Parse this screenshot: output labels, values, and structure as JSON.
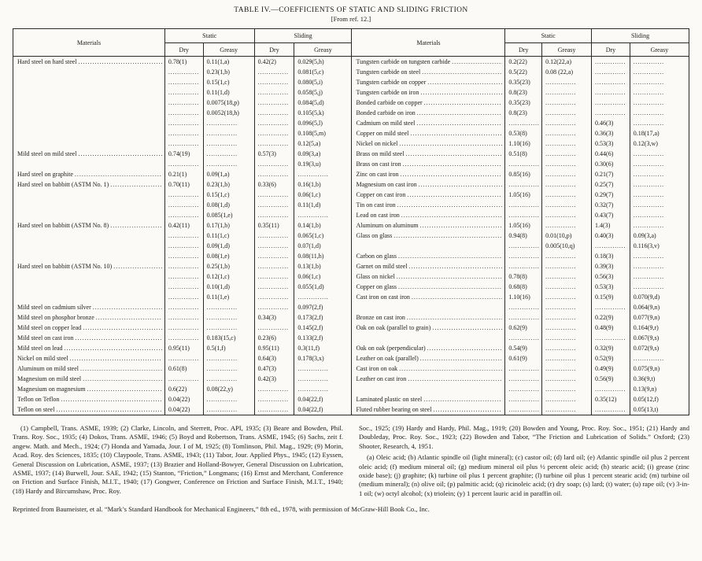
{
  "page": {
    "title": "TABLE IV.—COEFFICIENTS OF STATIC AND SLIDING FRICTION",
    "subtitle": "[From ref. 12.]",
    "reprint_note": "Reprinted from Baumeister, et al. “Mark’s Standard Handbook for Mechanical Engineers,” 8th ed., 1978, with permission of McGraw-Hill Book Co., Inc."
  },
  "table": {
    "column_headers": {
      "materials": "Materials",
      "static": "Static",
      "sliding": "Sliding",
      "dry": "Dry",
      "greasy": "Greasy"
    },
    "empty_cell_dots": "..............",
    "left_rows": [
      {
        "material": "Hard steel on hard steel",
        "cells": [
          "0.78(1)",
          "0.11(1,a)",
          "0.42(2)",
          "0.029(5,h)"
        ]
      },
      {
        "material": "",
        "cells": [
          "",
          "0.23(1,b)",
          "",
          "0.081(5,c)"
        ]
      },
      {
        "material": "",
        "cells": [
          "",
          "0.15(1,c)",
          "",
          "0.080(5,i)"
        ]
      },
      {
        "material": "",
        "cells": [
          "",
          "0.11(1,d)",
          "",
          "0.058(5,j)"
        ]
      },
      {
        "material": "",
        "cells": [
          "",
          "0.0075(18,p)",
          "",
          "0.084(5,d)"
        ]
      },
      {
        "material": "",
        "cells": [
          "",
          "0.0052(18,h)",
          "",
          "0.105(5,k)"
        ]
      },
      {
        "material": "",
        "cells": [
          "",
          "",
          "",
          "0.096(5,l)"
        ]
      },
      {
        "material": "",
        "cells": [
          "",
          "",
          "",
          "0.108(5,m)"
        ]
      },
      {
        "material": "",
        "cells": [
          "",
          "",
          "",
          "0.12(5,a)"
        ]
      },
      {
        "material": "Mild steel on mild steel",
        "cells": [
          "0.74(19)",
          "",
          "0.57(3)",
          "0.09(3,a)"
        ]
      },
      {
        "material": "",
        "cells": [
          "",
          "",
          "",
          "0.19(3,u)"
        ]
      },
      {
        "material": "Hard steel on graphite",
        "cells": [
          "0.21(1)",
          "0.09(1,a)",
          "",
          ""
        ]
      },
      {
        "material": "Hard steel on babbitt (ASTM No. 1)",
        "cells": [
          "0.70(11)",
          "0.23(1,b)",
          "0.33(6)",
          "0.16(1,b)"
        ]
      },
      {
        "material": "",
        "cells": [
          "",
          "0.15(1,c)",
          "",
          "0.06(1,c)"
        ]
      },
      {
        "material": "",
        "cells": [
          "",
          "0.08(1,d)",
          "",
          "0.11(1,d)"
        ]
      },
      {
        "material": "",
        "cells": [
          "",
          "0.085(1,e)",
          "",
          ""
        ]
      },
      {
        "material": "Hard steel on babbitt (ASTM No. 8)",
        "cells": [
          "0.42(11)",
          "0.17(1,b)",
          "0.35(11)",
          "0.14(1,b)"
        ]
      },
      {
        "material": "",
        "cells": [
          "",
          "0.11(1,c)",
          "",
          "0.065(1,c)"
        ]
      },
      {
        "material": "",
        "cells": [
          "",
          "0.09(1,d)",
          "",
          "0.07(1,d)"
        ]
      },
      {
        "material": "",
        "cells": [
          "",
          "0.08(1,e)",
          "",
          "0.08(11,h)"
        ]
      },
      {
        "material": "Hard steel on babbitt (ASTM No. 10)",
        "cells": [
          "",
          "0.25(1,b)",
          "",
          "0.13(1,b)"
        ]
      },
      {
        "material": "",
        "cells": [
          "",
          "0.12(1,c)",
          "",
          "0.06(1,c)"
        ]
      },
      {
        "material": "",
        "cells": [
          "",
          "0.10(1,d)",
          "",
          "0.055(1,d)"
        ]
      },
      {
        "material": "",
        "cells": [
          "",
          "0.11(1,e)",
          "",
          ""
        ]
      },
      {
        "material": "Mild steel on cadmium silver",
        "cells": [
          "",
          "",
          "",
          "0.097(2,f)"
        ]
      },
      {
        "material": "Mild steel on phosphor bronze",
        "cells": [
          "",
          "",
          "0.34(3)",
          "0.173(2,f)"
        ]
      },
      {
        "material": "Mild steel on copper lead",
        "cells": [
          "",
          "",
          "",
          "0.145(2,f)"
        ]
      },
      {
        "material": "Mild steel on cast iron",
        "cells": [
          "",
          "0.183(15,c)",
          "0.23(6)",
          "0.133(2,f)"
        ]
      },
      {
        "material": "Mild steel on lead",
        "cells": [
          "0.95(11)",
          "0.5(1,f)",
          "0.95(11)",
          "0.3(11,f)"
        ]
      },
      {
        "material": "Nickel on mild steel",
        "cells": [
          "",
          "",
          "0.64(3)",
          "0.178(3,x)"
        ]
      },
      {
        "material": "Aluminum on mild steel",
        "cells": [
          "0.61(8)",
          "",
          "0.47(3)",
          ""
        ]
      },
      {
        "material": "Magnesium on mild steel",
        "cells": [
          "",
          "",
          "0.42(3)",
          ""
        ]
      },
      {
        "material": "Magnesium on magnesium",
        "cells": [
          "0.6(22)",
          "0.08(22,y)",
          "",
          ""
        ]
      },
      {
        "material": "Teflon on Teflon",
        "cells": [
          "0.04(22)",
          "",
          "",
          "0.04(22,f)"
        ]
      },
      {
        "material": "Teflon on steel",
        "cells": [
          "0.04(22)",
          "",
          "",
          "0.04(22,f)"
        ]
      }
    ],
    "right_rows": [
      {
        "material": "Tungsten carbide on tungsten carbide",
        "cells": [
          "0.2(22)",
          "0.12(22,a)",
          "",
          ""
        ]
      },
      {
        "material": "Tungsten carbide on steel",
        "cells": [
          "0.5(22)",
          "0.08 (22,a)",
          "",
          ""
        ]
      },
      {
        "material": "Tungsten carbide on copper",
        "cells": [
          "0.35(23)",
          "",
          "",
          ""
        ]
      },
      {
        "material": "Tungsten carbide on iron",
        "cells": [
          "0.8(23)",
          "",
          "",
          ""
        ]
      },
      {
        "material": "Bonded carbide on copper",
        "cells": [
          "0.35(23)",
          "",
          "",
          ""
        ]
      },
      {
        "material": "Bonded carbide on iron",
        "cells": [
          "0.8(23)",
          "",
          "",
          ""
        ]
      },
      {
        "material": "Cadmium on mild steel",
        "cells": [
          "",
          "",
          "0.46(3)",
          ""
        ]
      },
      {
        "material": "Copper on mild steel",
        "cells": [
          "0.53(8)",
          "",
          "0.36(3)",
          "0.18(17,a)"
        ]
      },
      {
        "material": "Nickel on nickel",
        "cells": [
          "1.10(16)",
          "",
          "0.53(3)",
          "0.12(3,w)"
        ]
      },
      {
        "material": "Brass on mild steel",
        "cells": [
          "0.51(8)",
          "",
          "0.44(6)",
          ""
        ]
      },
      {
        "material": "Brass on cast iron",
        "cells": [
          "",
          "",
          "0.30(6)",
          ""
        ]
      },
      {
        "material": "Zinc on cast iron",
        "cells": [
          "0.85(16)",
          "",
          "0.21(7)",
          ""
        ]
      },
      {
        "material": "Magnesium on cast iron",
        "cells": [
          "",
          "",
          "0.25(7)",
          ""
        ]
      },
      {
        "material": "Copper on cast iron",
        "cells": [
          "1.05(16)",
          "",
          "0.29(7)",
          ""
        ]
      },
      {
        "material": "Tin on cast iron",
        "cells": [
          "",
          "",
          "0.32(7)",
          ""
        ]
      },
      {
        "material": "Lead on cast iron",
        "cells": [
          "",
          "",
          "0.43(7)",
          ""
        ]
      },
      {
        "material": "Aluminum on aluminum",
        "cells": [
          "1.05(16)",
          "",
          "1.4(3)",
          ""
        ]
      },
      {
        "material": "Glass on glass",
        "cells": [
          "0.94(8)",
          "0.01(10,p)",
          "0.40(3)",
          "0.09(3,a)"
        ]
      },
      {
        "material": "",
        "cells": [
          "",
          "0.005(10,q)",
          "",
          "0.116(3,v)"
        ]
      },
      {
        "material": "Carbon on glass",
        "cells": [
          "",
          "",
          "0.18(3)",
          ""
        ]
      },
      {
        "material": "Garnet on mild steel",
        "cells": [
          "",
          "",
          "0.39(3)",
          ""
        ]
      },
      {
        "material": "Glass on nickel",
        "cells": [
          "0.78(8)",
          "",
          "0.56(3)",
          ""
        ]
      },
      {
        "material": "Copper on glass",
        "cells": [
          "0.68(8)",
          "",
          "0.53(3)",
          ""
        ]
      },
      {
        "material": "Cast iron on cast iron",
        "cells": [
          "1.10(16)",
          "",
          "0.15(9)",
          "0.070(9,d)"
        ]
      },
      {
        "material": "",
        "cells": [
          "",
          "",
          "",
          "0.064(9,n)"
        ]
      },
      {
        "material": "Bronze on cast iron",
        "cells": [
          "",
          "",
          "0.22(9)",
          "0.077(9,n)"
        ]
      },
      {
        "material": "Oak on oak (parallel to grain)",
        "cells": [
          "0.62(9)",
          "",
          "0.48(9)",
          "0.164(9,r)"
        ]
      },
      {
        "material": "",
        "cells": [
          "",
          "",
          "",
          "0.067(9,s)"
        ]
      },
      {
        "material": "Oak on oak (perpendicular)",
        "cells": [
          "0.54(9)",
          "",
          "0.32(9)",
          "0.072(9,s)"
        ]
      },
      {
        "material": "Leather on oak (parallel)",
        "cells": [
          "0.61(9)",
          "",
          "0.52(9)",
          ""
        ]
      },
      {
        "material": "Cast iron on oak",
        "cells": [
          "",
          "",
          "0.49(9)",
          "0.075(9,n)"
        ]
      },
      {
        "material": "Leather on cast iron",
        "cells": [
          "",
          "",
          "0.56(9)",
          "0.36(9,t)"
        ]
      },
      {
        "material": "",
        "cells": [
          "",
          "",
          "",
          "0.13(9,n)"
        ]
      },
      {
        "material": "Laminated plastic on steel",
        "cells": [
          "",
          "",
          "0.35(12)",
          "0.05(12,f)"
        ]
      },
      {
        "material": "Fluted rubber bearing on steel",
        "cells": [
          "",
          "",
          "",
          "0.05(13,t)"
        ]
      }
    ]
  },
  "footnotes": {
    "references_col1": "(1) Campbell, Trans. ASME, 1939; (2) Clarke, Lincoln, and Sterrett, Proc. API, 1935; (3) Beare and Bowden, Phil. Trans. Roy. Soc., 1935; (4) Dokos, Trans. ASME, 1946; (5) Boyd and Robertson, Trans. ASME, 1945; (6) Sachs, zeit f. angew. Math. and Mech., 1924; (7) Honda and Yamada, Jour. I of M, 1925; (8) Tomlinson, Phil. Mag., 1929; (9) Morin, Acad. Roy. des Sciences, 1835; (10) Claypoole, Trans. ASME, 1943; (11) Tabor, Jour. Applied Phys., 1945; (12) Eyssen, General Discussion on Lubrication, ASME, 1937; (13) Brazier and Holland-Bowyer, General Discussion on Lubrication, ASME, 1937; (14) Burwell, Jour. SAE, 1942; (15) Stanton, “Friction,” Longmans; (16) Ernst and Merchant, Conference on Friction and Surface Finish, M.I.T., 1940; (17) Gongwer, Conference on Friction and Surface Finish, M.I.T., 1940; (18) Hardy and Bircumshaw, Proc. Roy.",
    "references_col2": "Soc., 1925; (19) Hardy and Hardy, Phil. Mag., 1919; (20) Bowden and Young, Proc. Roy. Soc., 1951; (21) Hardy and Doubleday, Proc. Roy. Soc., 1923; (22) Bowden and Tabor, “The Friction and Lubrication of Solids.” Oxford; (23) Shooter, Research, 4, 1951.",
    "lubricants": "(a) Oleic acid; (b) Atlantic spindle oil (light mineral); (c) castor oil; (d) lard oil; (e) Atlantic spindle oil plus 2 percent oleic acid; (f) medium mineral oil; (g) medium mineral oil plus ½ percent oleic acid; (h) stearic acid; (i) grease (zinc oxide base); (j) graphite; (k) turbine oil plus 1 percent graphite; (l) turbine oil plus 1 percent stearic acid; (m) turbine oil (medium mineral); (n) olive oil; (p) palmitic acid; (q) ricinoleic acid; (r) dry soap; (s) lard; (t) water; (u) rape oil; (v) 3-in-1 oil; (w) octyl alcohol; (x) triolein; (y) 1 percent lauric acid in paraffin oil."
  }
}
